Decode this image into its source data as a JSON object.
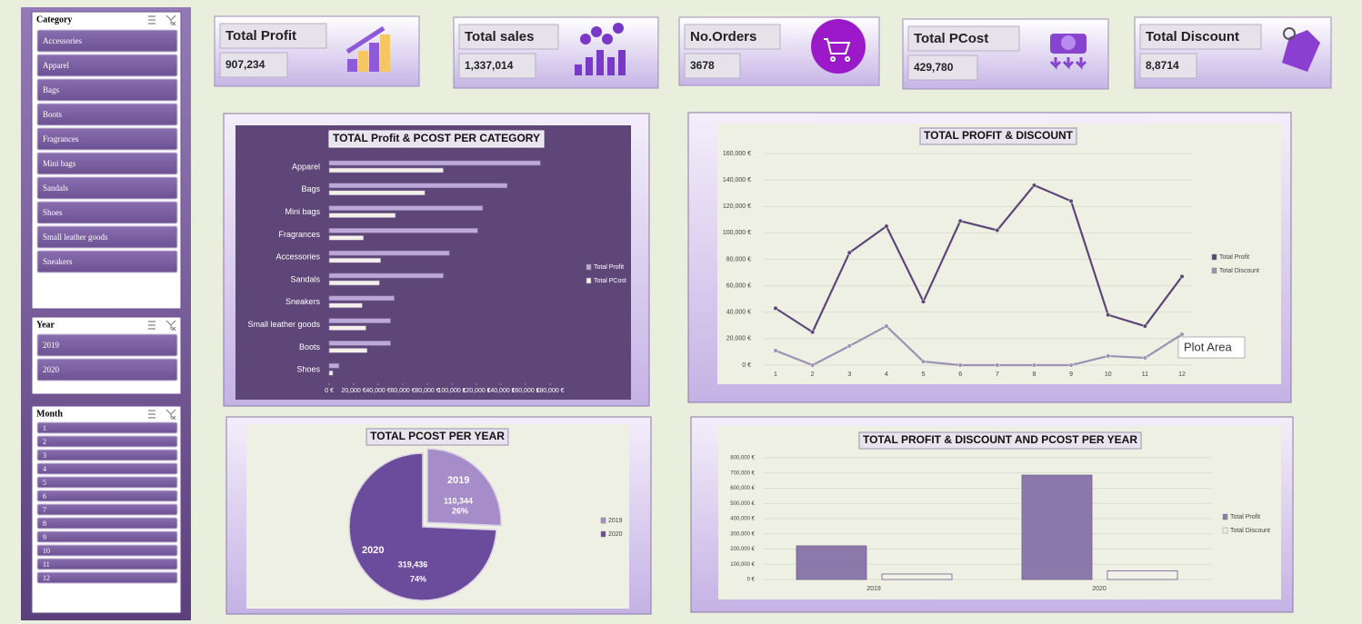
{
  "slicers": [
    {
      "title": "Category",
      "items": [
        "Accessories",
        "Apparel",
        "Bags",
        "Boots",
        "Fragrances",
        "Mini bags",
        "Sandals",
        "Shoes",
        "Small leather goods",
        "Sneakers"
      ]
    },
    {
      "title": "Year",
      "items": [
        "2019",
        "2020"
      ]
    },
    {
      "title": "Month",
      "items": [
        "1",
        "2",
        "3",
        "4",
        "5",
        "6",
        "7",
        "8",
        "9",
        "10",
        "11",
        "12"
      ]
    }
  ],
  "kpis": [
    {
      "label": "Total Profit",
      "value": "907,234"
    },
    {
      "label": "Total sales",
      "value": "1,337,014"
    },
    {
      "label": "No.Orders",
      "value": "3678"
    },
    {
      "label": "Total PCost",
      "value": "429,780"
    },
    {
      "label": "Total Discount",
      "value": "8,8714"
    }
  ],
  "chart_data": [
    {
      "type": "hbar",
      "title": "TOTAL Profit & PCOST PER CATEGORY",
      "categories": [
        "Apparel",
        "Bags",
        "Mini bags",
        "Fragrances",
        "Accessories",
        "Sandals",
        "Sneakers",
        "Small leather goods",
        "Boots",
        "Shoes"
      ],
      "series": [
        {
          "name": "Total Profit",
          "color": "#bca9da",
          "values": [
            172000,
            145000,
            125000,
            121000,
            98000,
            93000,
            53000,
            50000,
            50000,
            8000
          ]
        },
        {
          "name": "Total PCost",
          "color": "#f4f1ea",
          "values": [
            93000,
            78000,
            54000,
            28000,
            42000,
            41000,
            27000,
            30000,
            31000,
            3000
          ]
        }
      ],
      "xlim": [
        0,
        180000
      ],
      "xticks": [
        {
          "value": 0,
          "label": "0 €"
        },
        {
          "value": 20000,
          "label": "20,000 €"
        },
        {
          "value": 40000,
          "label": "40,000 €"
        },
        {
          "value": 60000,
          "label": "60,000 €"
        },
        {
          "value": 80000,
          "label": "80,000 €"
        },
        {
          "value": 100000,
          "label": "100,000 €"
        },
        {
          "value": 120000,
          "label": "120,000 €"
        },
        {
          "value": 140000,
          "label": "140,000 €"
        },
        {
          "value": 160000,
          "label": "160,000 €"
        },
        {
          "value": 180000,
          "label": "180,000 €"
        }
      ],
      "legend": "right"
    },
    {
      "type": "line",
      "title": "TOTAL PROFIT & DISCOUNT",
      "x": [
        1,
        2,
        3,
        4,
        5,
        6,
        7,
        8,
        9,
        10,
        11,
        12
      ],
      "series": [
        {
          "name": "Total Profit",
          "color": "#5e4678",
          "values": [
            43000,
            25000,
            85000,
            105000,
            48000,
            109000,
            102000,
            136000,
            124000,
            38000,
            29500,
            67000
          ]
        },
        {
          "name": "Total Discount",
          "color": "#9d92b3",
          "values": [
            11000,
            0,
            14500,
            29500,
            2700,
            0,
            0,
            0,
            0,
            6900,
            5500,
            23300
          ]
        }
      ],
      "xlim": [
        1,
        12
      ],
      "xticks": [
        1,
        2,
        3,
        4,
        5,
        6,
        7,
        8,
        9,
        10,
        11,
        12
      ],
      "ylim": [
        0,
        160000
      ],
      "yticks": [
        {
          "value": 0,
          "label": "0 €"
        },
        {
          "value": 20000,
          "label": "20,000 €"
        },
        {
          "value": 40000,
          "label": "40,000 €"
        },
        {
          "value": 60000,
          "label": "60,000 €"
        },
        {
          "value": 80000,
          "label": "80,000 €"
        },
        {
          "value": 100000,
          "label": "100,000 €"
        },
        {
          "value": 120000,
          "label": "120,000 €"
        },
        {
          "value": 140000,
          "label": "140,000 €"
        },
        {
          "value": 160000,
          "label": "160,000 €"
        }
      ],
      "grid": true,
      "legend": "right",
      "annotation": "Plot Area"
    },
    {
      "type": "pie",
      "title": "TOTAL PCOST PER YEAR",
      "categories": [
        "2019",
        "2020"
      ],
      "values": [
        110344,
        319436
      ],
      "value_labels": [
        "110,344",
        "319,436"
      ],
      "percent_labels": [
        "26%",
        "74%"
      ],
      "colors": [
        "#a68cc9",
        "#6b4b9b"
      ],
      "legend": "right"
    },
    {
      "type": "bar",
      "title": "TOTAL PROFIT & DISCOUNT AND PCOST PER YEAR",
      "categories": [
        "2019",
        "2020"
      ],
      "series": [
        {
          "name": "Total Profit",
          "color": "#8c78aa",
          "values": [
            221000,
            686000
          ]
        },
        {
          "name": "Total Discount",
          "color": "#f1f1e8",
          "values": [
            36000,
            57000
          ]
        }
      ],
      "ylim": [
        0,
        800000
      ],
      "yticks": [
        {
          "value": 0,
          "label": "0 €"
        },
        {
          "value": 100000,
          "label": "100,000 €"
        },
        {
          "value": 200000,
          "label": "200,000 €"
        },
        {
          "value": 300000,
          "label": "300,000 €"
        },
        {
          "value": 400000,
          "label": "400,000 €"
        },
        {
          "value": 500000,
          "label": "500,000 €"
        },
        {
          "value": 600000,
          "label": "600,000 €"
        },
        {
          "value": 700000,
          "label": "700,000 €"
        },
        {
          "value": 800000,
          "label": "800,000 €"
        }
      ],
      "grid": true,
      "legend": "right"
    }
  ]
}
